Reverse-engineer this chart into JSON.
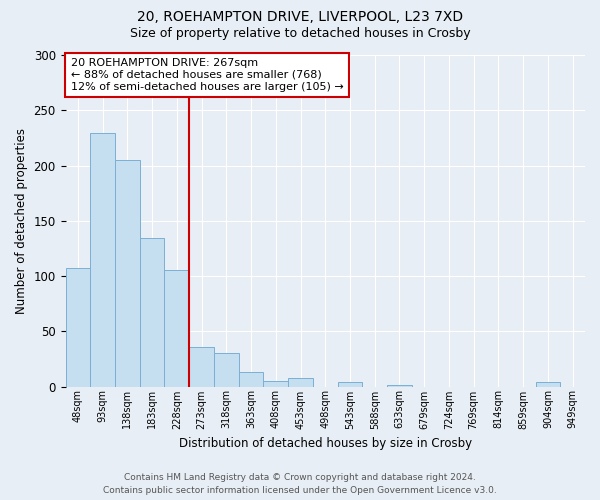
{
  "title_line1": "20, ROEHAMPTON DRIVE, LIVERPOOL, L23 7XD",
  "title_line2": "Size of property relative to detached houses in Crosby",
  "xlabel": "Distribution of detached houses by size in Crosby",
  "ylabel": "Number of detached properties",
  "bar_color": "#c6dff0",
  "bar_edge_color": "#7aafd4",
  "background_color": "#e8eef5",
  "bins": [
    "48sqm",
    "93sqm",
    "138sqm",
    "183sqm",
    "228sqm",
    "273sqm",
    "318sqm",
    "363sqm",
    "408sqm",
    "453sqm",
    "498sqm",
    "543sqm",
    "588sqm",
    "633sqm",
    "679sqm",
    "724sqm",
    "769sqm",
    "814sqm",
    "859sqm",
    "904sqm",
    "949sqm"
  ],
  "values": [
    107,
    229,
    205,
    134,
    105,
    36,
    30,
    13,
    5,
    8,
    0,
    4,
    0,
    1,
    0,
    0,
    0,
    0,
    0,
    4,
    0
  ],
  "vline_x": 5,
  "vline_color": "#cc0000",
  "ylim": [
    0,
    300
  ],
  "yticks": [
    0,
    50,
    100,
    150,
    200,
    250,
    300
  ],
  "annotation_title": "20 ROEHAMPTON DRIVE: 267sqm",
  "annotation_line2": "← 88% of detached houses are smaller (768)",
  "annotation_line3": "12% of semi-detached houses are larger (105) →",
  "annotation_box_color": "#ffffff",
  "annotation_border_color": "#cc0000",
  "footer_line1": "Contains HM Land Registry data © Crown copyright and database right 2024.",
  "footer_line2": "Contains public sector information licensed under the Open Government Licence v3.0."
}
